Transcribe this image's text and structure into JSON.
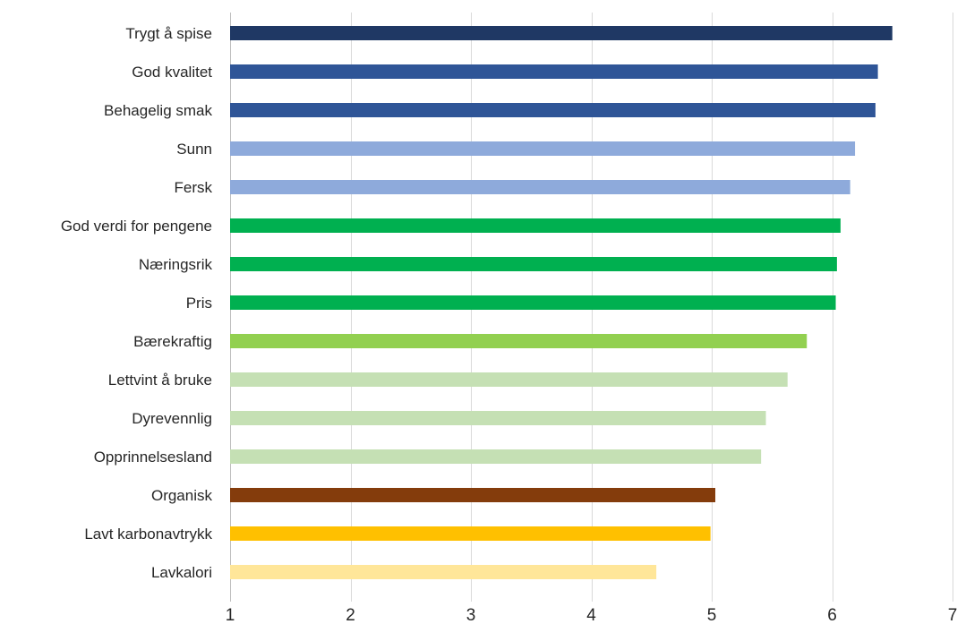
{
  "chart_data": {
    "type": "bar",
    "orientation": "horizontal",
    "title": "",
    "xlabel": "",
    "ylabel": "",
    "xlim": [
      1,
      7
    ],
    "x_ticks": [
      1,
      2,
      3,
      4,
      5,
      6,
      7
    ],
    "grid": "vertical",
    "legend": "none",
    "categories": [
      "Trygt å spise",
      "God kvalitet",
      "Behagelig smak",
      "Sunn",
      "Fersk",
      "God verdi for pengene",
      "Næringsrik",
      "Pris",
      "Bærekraftig",
      "Lettvint å bruke",
      "Dyrevennlig",
      "Opprinnelsesland",
      "Organisk",
      "Lavt karbonavtrykk",
      "Lavkalori"
    ],
    "values": [
      6.5,
      6.38,
      6.36,
      6.19,
      6.15,
      6.07,
      6.04,
      6.03,
      5.79,
      5.63,
      5.45,
      5.41,
      5.03,
      4.99,
      4.54
    ],
    "colors": [
      "#1f3864",
      "#2f5597",
      "#2f5597",
      "#8eaadb",
      "#8eaadb",
      "#00b050",
      "#00b050",
      "#00b050",
      "#92d050",
      "#c5e0b4",
      "#c5e0b4",
      "#c5e0b4",
      "#843c0c",
      "#ffc000",
      "#ffe699"
    ]
  }
}
